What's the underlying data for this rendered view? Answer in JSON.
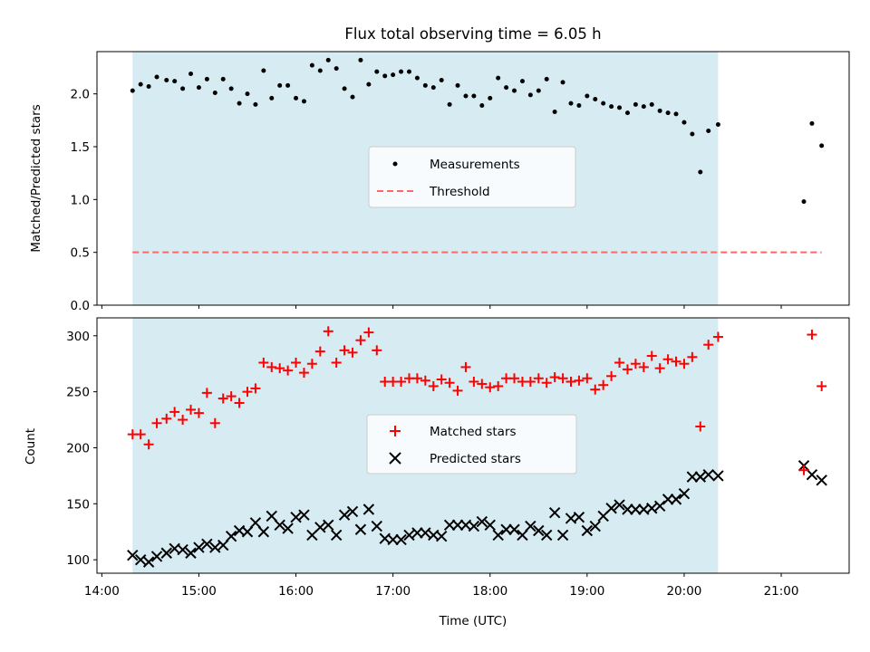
{
  "title": "Flux total observing time = 6.05 h",
  "colors": {
    "shade": "#add8e6",
    "measurement": "#000000",
    "threshold": "#ff6666",
    "matched": "#ff0000",
    "predicted": "#000000"
  },
  "chart_data": [
    {
      "type": "scatter",
      "ylabel": "Matched/Predicted stars",
      "ylim": [
        0,
        2.4
      ],
      "yticks": [
        "0.0",
        "0.5",
        "1.0",
        "1.5",
        "2.0"
      ],
      "legend": {
        "location": "center",
        "entries": [
          "Measurements",
          "Threshold"
        ]
      },
      "shaded_x": [
        "14:19",
        "20:21"
      ],
      "threshold": {
        "name": "Threshold",
        "value": 0.5,
        "x": [
          "14:19",
          "21:25"
        ]
      },
      "series": [
        {
          "name": "Measurements",
          "marker": "dot",
          "x": [
            "14:19",
            "14:24",
            "14:29",
            "14:34",
            "14:40",
            "14:45",
            "14:50",
            "14:55",
            "15:00",
            "15:05",
            "15:10",
            "15:15",
            "15:20",
            "15:25",
            "15:30",
            "15:35",
            "15:40",
            "15:45",
            "15:50",
            "15:55",
            "16:00",
            "16:05",
            "16:10",
            "16:15",
            "16:20",
            "16:25",
            "16:30",
            "16:35",
            "16:40",
            "16:45",
            "16:50",
            "16:55",
            "17:00",
            "17:05",
            "17:10",
            "17:15",
            "17:20",
            "17:25",
            "17:30",
            "17:35",
            "17:40",
            "17:45",
            "17:50",
            "17:55",
            "18:00",
            "18:05",
            "18:10",
            "18:15",
            "18:20",
            "18:25",
            "18:30",
            "18:35",
            "18:40",
            "18:45",
            "18:50",
            "18:55",
            "19:00",
            "19:05",
            "19:10",
            "19:15",
            "19:20",
            "19:25",
            "19:30",
            "19:35",
            "19:40",
            "19:45",
            "19:50",
            "19:55",
            "20:00",
            "20:05",
            "20:10",
            "20:15",
            "20:21",
            "21:14",
            "21:19",
            "21:25"
          ],
          "y": [
            2.03,
            2.09,
            2.07,
            2.16,
            2.13,
            2.12,
            2.05,
            2.19,
            2.06,
            2.14,
            2.01,
            2.14,
            2.05,
            1.91,
            2.0,
            1.9,
            2.22,
            1.96,
            2.08,
            2.08,
            1.96,
            1.93,
            2.27,
            2.22,
            2.32,
            2.24,
            2.05,
            1.97,
            2.32,
            2.09,
            2.21,
            2.17,
            2.18,
            2.21,
            2.21,
            2.15,
            2.08,
            2.06,
            2.13,
            1.9,
            2.08,
            1.98,
            1.98,
            1.89,
            1.96,
            2.15,
            2.06,
            2.03,
            2.12,
            1.99,
            2.03,
            2.14,
            1.83,
            2.11,
            1.91,
            1.89,
            1.98,
            1.95,
            1.91,
            1.88,
            1.87,
            1.82,
            1.9,
            1.88,
            1.9,
            1.84,
            1.82,
            1.81,
            1.73,
            1.62,
            1.26,
            1.65,
            1.71,
            0.98,
            1.72,
            1.51
          ]
        }
      ]
    },
    {
      "type": "scatter",
      "xlabel": "Time (UTC)",
      "ylabel": "Count",
      "ylim": [
        88,
        316
      ],
      "yticks": [
        "100",
        "150",
        "200",
        "250",
        "300"
      ],
      "xticks": [
        "14:00",
        "15:00",
        "16:00",
        "17:00",
        "18:00",
        "19:00",
        "20:00",
        "21:00"
      ],
      "xlim": [
        "13:57",
        "21:42"
      ],
      "legend": {
        "location": "center",
        "entries": [
          "Matched stars",
          "Predicted stars"
        ]
      },
      "shaded_x": [
        "14:19",
        "20:21"
      ],
      "series": [
        {
          "name": "Matched stars",
          "marker": "plus",
          "x": [
            "14:19",
            "14:24",
            "14:29",
            "14:34",
            "14:40",
            "14:45",
            "14:50",
            "14:55",
            "15:00",
            "15:05",
            "15:10",
            "15:15",
            "15:20",
            "15:25",
            "15:30",
            "15:35",
            "15:40",
            "15:45",
            "15:50",
            "15:55",
            "16:00",
            "16:05",
            "16:10",
            "16:15",
            "16:20",
            "16:25",
            "16:30",
            "16:35",
            "16:40",
            "16:45",
            "16:50",
            "16:55",
            "17:00",
            "17:05",
            "17:10",
            "17:15",
            "17:20",
            "17:25",
            "17:30",
            "17:35",
            "17:40",
            "17:45",
            "17:50",
            "17:55",
            "18:00",
            "18:05",
            "18:10",
            "18:15",
            "18:20",
            "18:25",
            "18:30",
            "18:35",
            "18:40",
            "18:45",
            "18:50",
            "18:55",
            "19:00",
            "19:05",
            "19:10",
            "19:15",
            "19:20",
            "19:25",
            "19:30",
            "19:35",
            "19:40",
            "19:45",
            "19:50",
            "19:55",
            "20:00",
            "20:05",
            "20:10",
            "20:15",
            "20:21",
            "21:14",
            "21:19",
            "21:25"
          ],
          "y": [
            212,
            212,
            203,
            222,
            226,
            232,
            225,
            234,
            231,
            249,
            222,
            244,
            246,
            240,
            250,
            253,
            276,
            272,
            271,
            269,
            276,
            267,
            275,
            286,
            304,
            276,
            287,
            285,
            296,
            303,
            287,
            259,
            259,
            259,
            262,
            262,
            260,
            255,
            261,
            258,
            251,
            272,
            259,
            257,
            254,
            255,
            262,
            262,
            259,
            259,
            262,
            258,
            263,
            262,
            259,
            260,
            262,
            252,
            256,
            264,
            276,
            270,
            275,
            272,
            282,
            271,
            279,
            277,
            275,
            281,
            219,
            292,
            299,
            180,
            301,
            255
          ]
        },
        {
          "name": "Predicted stars",
          "marker": "x",
          "x": [
            "14:19",
            "14:24",
            "14:29",
            "14:34",
            "14:40",
            "14:45",
            "14:50",
            "14:55",
            "15:00",
            "15:05",
            "15:10",
            "15:15",
            "15:20",
            "15:25",
            "15:30",
            "15:35",
            "15:40",
            "15:45",
            "15:50",
            "15:55",
            "16:00",
            "16:05",
            "16:10",
            "16:15",
            "16:20",
            "16:25",
            "16:30",
            "16:35",
            "16:40",
            "16:45",
            "16:50",
            "16:55",
            "17:00",
            "17:05",
            "17:10",
            "17:15",
            "17:20",
            "17:25",
            "17:30",
            "17:35",
            "17:40",
            "17:45",
            "17:50",
            "17:55",
            "18:00",
            "18:05",
            "18:10",
            "18:15",
            "18:20",
            "18:25",
            "18:30",
            "18:35",
            "18:40",
            "18:45",
            "18:50",
            "18:55",
            "19:00",
            "19:05",
            "19:10",
            "19:15",
            "19:20",
            "19:25",
            "19:30",
            "19:35",
            "19:40",
            "19:45",
            "19:50",
            "19:55",
            "20:00",
            "20:05",
            "20:10",
            "20:15",
            "20:21",
            "21:14",
            "21:19",
            "21:25"
          ],
          "y": [
            104,
            100,
            98,
            103,
            106,
            110,
            109,
            106,
            111,
            114,
            111,
            113,
            121,
            126,
            125,
            133,
            125,
            139,
            131,
            128,
            138,
            140,
            122,
            129,
            131,
            122,
            140,
            143,
            127,
            145,
            130,
            119,
            118,
            118,
            122,
            124,
            124,
            122,
            121,
            131,
            131,
            131,
            130,
            134,
            131,
            122,
            127,
            127,
            122,
            130,
            126,
            122,
            142,
            122,
            137,
            138,
            126,
            130,
            139,
            146,
            149,
            145,
            145,
            145,
            146,
            148,
            154,
            154,
            159,
            174,
            174,
            176,
            175,
            184,
            176,
            171
          ]
        }
      ]
    }
  ]
}
